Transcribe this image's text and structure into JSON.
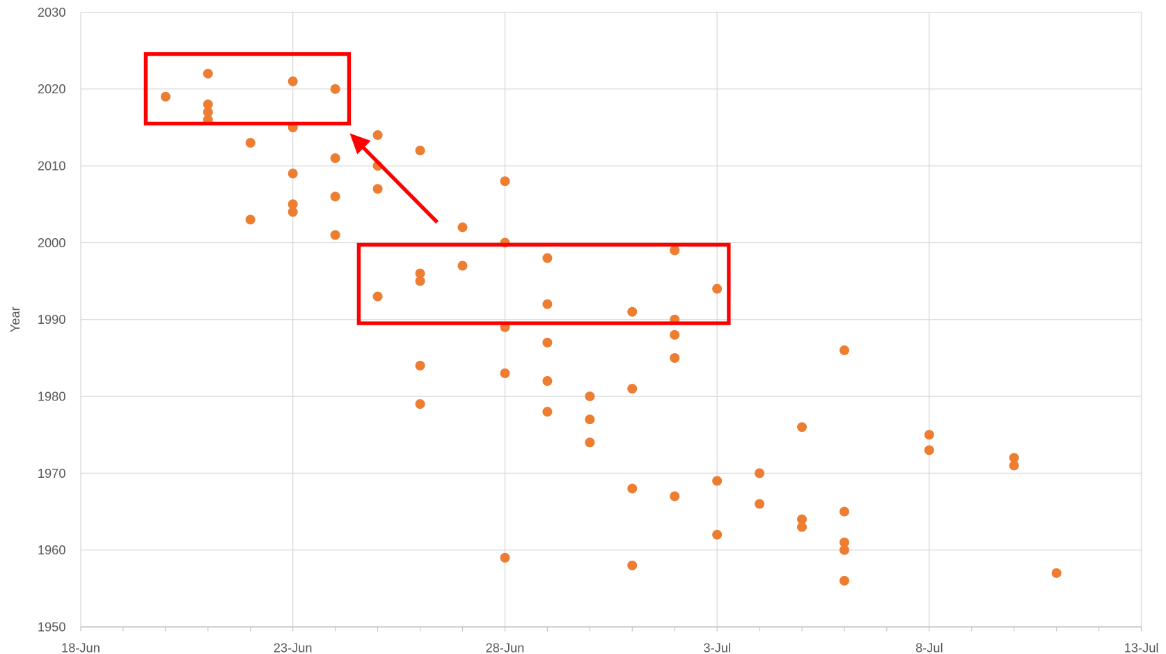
{
  "chart_data": {
    "type": "scatter",
    "y_label": "Year",
    "color": "#ed7d31",
    "grid": true,
    "xlim": [
      "18-Jun",
      "13-Jul"
    ],
    "xticks": [
      "18-Jun",
      "23-Jun",
      "28-Jun",
      "3-Jul",
      "8-Jul",
      "13-Jul"
    ],
    "ylim": [
      1950,
      2030
    ],
    "yticks": [
      1950,
      1960,
      1970,
      1980,
      1990,
      2000,
      2010,
      2020,
      2030
    ],
    "x": [
      "20-Jun",
      "21-Jun",
      "21-Jun",
      "21-Jun",
      "21-Jun",
      "22-Jun",
      "22-Jun",
      "23-Jun",
      "23-Jun",
      "23-Jun",
      "23-Jun",
      "23-Jun",
      "24-Jun",
      "24-Jun",
      "24-Jun",
      "24-Jun",
      "25-Jun",
      "25-Jun",
      "25-Jun",
      "25-Jun",
      "26-Jun",
      "26-Jun",
      "26-Jun",
      "26-Jun",
      "26-Jun",
      "27-Jun",
      "27-Jun",
      "28-Jun",
      "28-Jun",
      "28-Jun",
      "28-Jun",
      "28-Jun",
      "29-Jun",
      "29-Jun",
      "29-Jun",
      "29-Jun",
      "29-Jun",
      "30-Jun",
      "30-Jun",
      "30-Jun",
      "1-Jul",
      "1-Jul",
      "1-Jul",
      "1-Jul",
      "2-Jul",
      "2-Jul",
      "2-Jul",
      "2-Jul",
      "2-Jul",
      "3-Jul",
      "3-Jul",
      "3-Jul",
      "4-Jul",
      "4-Jul",
      "5-Jul",
      "5-Jul",
      "5-Jul",
      "6-Jul",
      "6-Jul",
      "6-Jul",
      "6-Jul",
      "6-Jul",
      "8-Jul",
      "8-Jul",
      "10-Jul",
      "10-Jul",
      "11-Jul"
    ],
    "values": [
      2019,
      2022,
      2018,
      2017,
      2016,
      2013,
      2003,
      2021,
      2015,
      2009,
      2005,
      2004,
      2020,
      2011,
      2006,
      2001,
      2014,
      2010,
      2007,
      1993,
      2012,
      1996,
      1995,
      1984,
      1979,
      2002,
      1997,
      2008,
      2000,
      1989,
      1983,
      1959,
      1998,
      1992,
      1987,
      1982,
      1978,
      1980,
      1977,
      1974,
      1991,
      1981,
      1968,
      1958,
      1999,
      1990,
      1988,
      1985,
      1967,
      1994,
      1969,
      1962,
      1970,
      1966,
      1976,
      1964,
      1963,
      1986,
      1965,
      1961,
      1960,
      1956,
      1975,
      1973,
      1972,
      1971,
      1957
    ]
  }
}
